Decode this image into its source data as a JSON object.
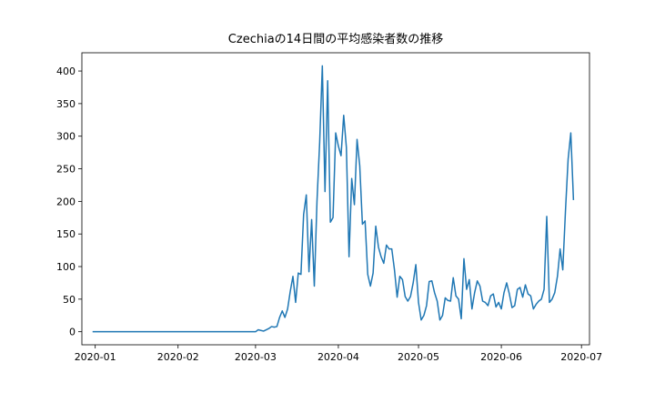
{
  "chart_data": {
    "type": "line",
    "title": "Czechiaの14日間の平均感染者数の推移",
    "xlabel": "",
    "ylabel": "",
    "xlim": [
      "2019-12-27",
      "2020-07-04"
    ],
    "ylim": [
      -20,
      428
    ],
    "x_ticks": [
      "2020-01",
      "2020-02",
      "2020-03",
      "2020-04",
      "2020-05",
      "2020-06",
      "2020-07"
    ],
    "y_ticks": [
      0,
      50,
      100,
      150,
      200,
      250,
      300,
      350,
      400
    ],
    "grid": false,
    "legend": "none",
    "series": [
      {
        "color": "#1f77b4",
        "x_start": "2019-12-31",
        "x_end": "2020-06-30",
        "values": [
          0,
          0,
          0,
          0,
          0,
          0,
          0,
          0,
          0,
          0,
          0,
          0,
          0,
          0,
          0,
          0,
          0,
          0,
          0,
          0,
          0,
          0,
          0,
          0,
          0,
          0,
          0,
          0,
          0,
          0,
          0,
          0,
          0,
          0,
          0,
          0,
          0,
          0,
          0,
          0,
          0,
          0,
          0,
          0,
          0,
          0,
          0,
          0,
          0,
          0,
          0,
          0,
          0,
          0,
          0,
          0,
          0,
          0,
          0,
          0,
          0,
          0,
          3,
          2,
          1,
          3,
          5,
          8,
          7,
          8,
          22,
          32,
          22,
          35,
          62,
          85,
          45,
          90,
          88,
          180,
          210,
          92,
          172,
          70,
          200,
          290,
          408,
          215,
          385,
          168,
          175,
          305,
          285,
          270,
          332,
          283,
          115,
          235,
          195,
          295,
          255,
          165,
          170,
          88,
          70,
          90,
          162,
          130,
          115,
          105,
          133,
          127,
          127,
          95,
          53,
          85,
          80,
          54,
          47,
          54,
          75,
          103,
          45,
          18,
          25,
          40,
          77,
          78,
          60,
          47,
          18,
          25,
          52,
          48,
          47,
          83,
          55,
          50,
          20,
          112,
          65,
          80,
          35,
          60,
          78,
          70,
          47,
          45,
          40,
          55,
          58,
          38,
          45,
          35,
          60,
          75,
          58,
          37,
          40,
          65,
          68,
          53,
          72,
          58,
          55,
          35,
          42,
          47,
          50,
          65,
          177,
          45,
          50,
          60,
          85,
          127,
          95,
          185,
          265,
          305,
          202
        ]
      }
    ]
  }
}
